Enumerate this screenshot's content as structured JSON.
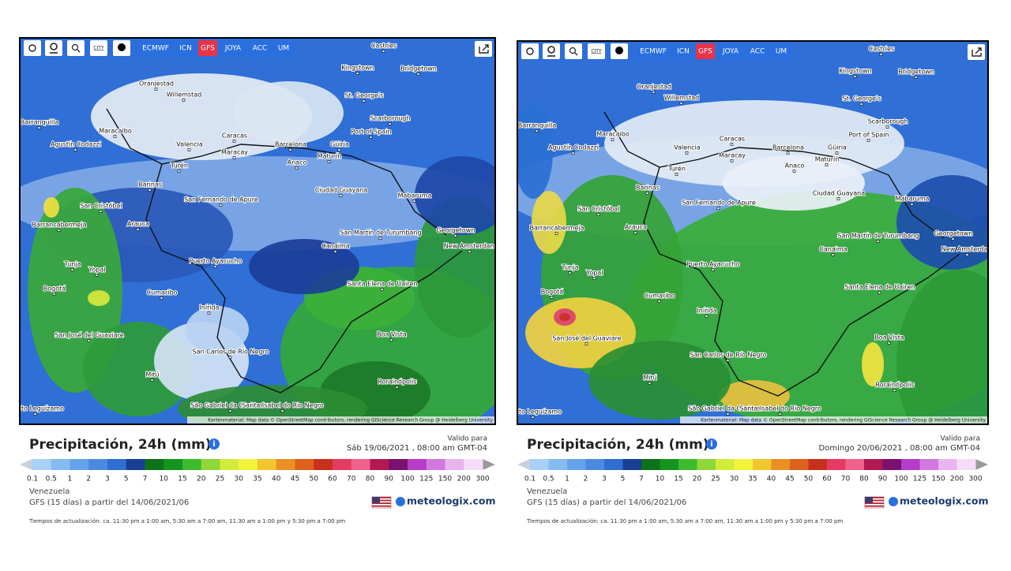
{
  "toolbar": {
    "city": "CITY",
    "models": [
      "ECMWF",
      "ICN",
      "GFS",
      "JOYA",
      "ACC",
      "UM"
    ],
    "active": 2
  },
  "cities": [
    "Castries",
    "Kingstown",
    "Bridgetown",
    "St. George's",
    "Oranjestad",
    "Willemstad",
    "Scarborough",
    "Barranquilla",
    "Maracaibo",
    "Caracas",
    "Port of Spain",
    "Agustín Codazzi",
    "Valencia",
    "Maracay",
    "Barcelona",
    "Güiria",
    "Maturín",
    "Anaco",
    "Turén",
    "Barinas",
    "Ciudad Guayana",
    "Mabaruma",
    "San Fernando de Apure",
    "San Cristóbal",
    "Barrancabermeja",
    "Arauca",
    "Georgetown",
    "San Martín de Turumbang",
    "New Amsterdam",
    "Canaima",
    "Tunja",
    "Yopal",
    "Puerto Ayacucho",
    "Santa Elena de Uairen",
    "Bogotá",
    "Cumaribo",
    "Inírida",
    "San José del Guaviare",
    "Boa Vista",
    "San Carlos de Río Negro",
    "Mitú",
    "Rorainópolis",
    "Puerto Leguízamo",
    "São Gabriel da Cachoeira",
    "Santa Isabel do Rio Negro"
  ],
  "attribution": "Kartenmaterial: Map data © OpenStreetMap contributors, rendering GIScience Research Group @ Heidelberg University",
  "title": "Precipitación, 24h (mm)",
  "valid_label": "Valido para",
  "panels": [
    {
      "valid_date": "Sáb 19/06/2021 ,  08:00 am  GMT-04"
    },
    {
      "valid_date": "Domingo 20/06/2021 , 08:00 am GMT-04"
    }
  ],
  "scale": {
    "labels": [
      0.1,
      0.5,
      1,
      2,
      3,
      5,
      7,
      10,
      15,
      20,
      25,
      30,
      35,
      40,
      45,
      50,
      60,
      70,
      80,
      90,
      100,
      125,
      150,
      200,
      300
    ],
    "colors": [
      "#a9d0f7",
      "#86bbf2",
      "#64a3ea",
      "#4a8be0",
      "#2f6fd2",
      "#183f95",
      "#0c7318",
      "#14961e",
      "#3cbc2c",
      "#8fd83c",
      "#d2ec3a",
      "#f5f23a",
      "#f2c62e",
      "#ea9024",
      "#dc621e",
      "#c8301e",
      "#e63a62",
      "#f0628c",
      "#b41852",
      "#7a1070",
      "#b43cc8",
      "#d278e0",
      "#eab4f0",
      "#f6dcf8"
    ]
  },
  "region": "Venezuela",
  "run": "GFS (15 días) a partir del 14/06/2021/06",
  "brand": "meteologix.com",
  "update": "Tiempos de actualización: ca. 11:30 pm a 1:00 am, 5:30 am a 7:00 am, 11:30 am a 1:00 pm y 5:30 pm a 7:00 pm"
}
